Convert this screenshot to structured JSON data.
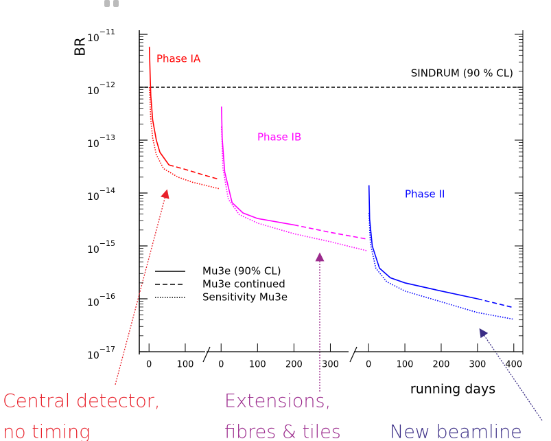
{
  "chart_data": {
    "type": "line",
    "y_label": "BR",
    "x_label": "running days",
    "yscale": "log",
    "ylim": [
      1e-17,
      1e-11
    ],
    "yticks": [
      {
        "value": 1e-11,
        "label": "10",
        "exponent": "−11"
      },
      {
        "value": 1e-12,
        "label": "10",
        "exponent": "−12"
      },
      {
        "value": 1e-13,
        "label": "10",
        "exponent": "−13"
      },
      {
        "value": 1e-14,
        "label": "10",
        "exponent": "−14"
      },
      {
        "value": 1e-15,
        "label": "10",
        "exponent": "−15"
      },
      {
        "value": 1e-16,
        "label": "10",
        "exponent": "−16"
      },
      {
        "value": 1e-17,
        "label": "10",
        "exponent": "−17"
      }
    ],
    "x_panels": [
      {
        "xlim": [
          -25,
          155
        ],
        "xticks": [
          0,
          100
        ]
      },
      {
        "xlim": [
          -40,
          350
        ],
        "xticks": [
          0,
          100,
          200,
          300
        ]
      },
      {
        "xlim": [
          -40,
          425
        ],
        "xticks": [
          0,
          100,
          200,
          300,
          400
        ]
      }
    ],
    "reference": {
      "label": "SINDRUM (90 % CL)",
      "value": 1e-12,
      "color": "#000000"
    },
    "legend": [
      {
        "label": "Mu3e (90% CL)",
        "style": "solid"
      },
      {
        "label": "Mu3e continued",
        "style": "dashed"
      },
      {
        "label": "Sensitivity Mu3e",
        "style": "dotted"
      }
    ],
    "phases": [
      {
        "name": "Phase IA",
        "color": "#ff0000",
        "panel": 0,
        "curves": [
          {
            "style": "solid",
            "x": [
              1,
              3,
              5,
              10,
              20,
              30,
              55
            ],
            "values": [
              5.8e-12,
              1.7e-12,
              6.8e-13,
              2.4e-13,
              1e-13,
              5.9e-14,
              3.4e-14
            ]
          },
          {
            "style": "dashed",
            "x": [
              55,
              100,
              150,
              195
            ],
            "values": [
              3.4e-14,
              2.8e-14,
              2.2e-14,
              1.8e-14
            ]
          },
          {
            "style": "dotted",
            "x": [
              1,
              5,
              10,
              20,
              40,
              80,
              120,
              195
            ],
            "values": [
              1e-12,
              2.4e-13,
              1.1e-13,
              5.3e-14,
              2.9e-14,
              2e-14,
              1.6e-14,
              1.2e-14
            ]
          }
        ]
      },
      {
        "name": "Phase IB",
        "color": "#ff00ff",
        "panel": 1,
        "curves": [
          {
            "style": "solid",
            "x": [
              1,
              3,
              10,
              30,
              60,
              100,
              200
            ],
            "values": [
              4.3e-13,
              1.1e-13,
              2.5e-14,
              6.6e-15,
              4.2e-15,
              3.3e-15,
              2.5e-15
            ]
          },
          {
            "style": "dashed",
            "x": [
              200,
              300,
              400
            ],
            "values": [
              2.5e-15,
              1.8e-15,
              1.35e-15
            ]
          },
          {
            "style": "dotted",
            "x": [
              1,
              5,
              20,
              50,
              100,
              200,
              300,
              400
            ],
            "values": [
              1.8e-13,
              2.9e-14,
              7.6e-15,
              3.9e-15,
              2.7e-15,
              1.7e-15,
              1.2e-15,
              8.1e-16
            ]
          }
        ]
      },
      {
        "name": "Phase II",
        "color": "#0000ff",
        "panel": 2,
        "curves": [
          {
            "style": "solid",
            "x": [
              1,
              3,
              10,
              30,
              60,
              100,
              200,
              300
            ],
            "values": [
              1.4e-14,
              3.2e-15,
              1e-15,
              3.8e-16,
              2.5e-16,
              2e-16,
              1.4e-16,
              1e-16
            ]
          },
          {
            "style": "dashed",
            "x": [
              300,
              400
            ],
            "values": [
              1e-16,
              6.8e-17
            ]
          },
          {
            "style": "dotted",
            "x": [
              1,
              5,
              20,
              50,
              100,
              200,
              300,
              400
            ],
            "values": [
              4.2e-15,
              1.1e-15,
              3.8e-16,
              2.1e-16,
              1.4e-16,
              8.8e-17,
              5.5e-17,
              4.1e-17
            ]
          }
        ]
      }
    ],
    "annotations": [
      {
        "lines": [
          "Central detector,",
          "no timing"
        ],
        "color": "#e8202a"
      },
      {
        "lines": [
          "Extensions,",
          "fibres & tiles"
        ],
        "color": "#9b2a8c"
      },
      {
        "lines": [
          "New beamline"
        ],
        "color": "#3a2d85"
      }
    ]
  }
}
